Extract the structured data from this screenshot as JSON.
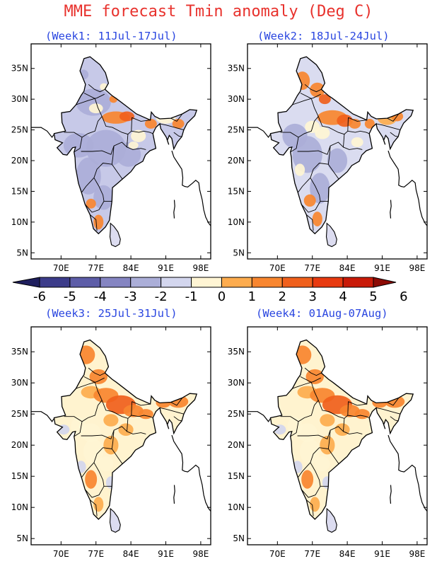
{
  "title": "MME forecast Tmin anomaly (Deg C)",
  "panels": [
    {
      "label": "(Week1: 11Jul-17Jul)",
      "tone": "cool"
    },
    {
      "label": "(Week2: 18Jul-24Jul)",
      "tone": "mixed"
    },
    {
      "label": "(Week3: 25Jul-31Jul)",
      "tone": "warm"
    },
    {
      "label": "(Week4: 01Aug-07Aug)",
      "tone": "warm"
    }
  ],
  "axes": {
    "lat_labels": [
      "35N",
      "30N",
      "25N",
      "20N",
      "15N",
      "10N",
      "5N"
    ],
    "lon_labels": [
      "70E",
      "77E",
      "84E",
      "91E",
      "98E"
    ]
  },
  "colorbar": {
    "labels": [
      "-6",
      "-5",
      "-4",
      "-3",
      "-2",
      "-1",
      "0",
      "1",
      "2",
      "3",
      "4",
      "5",
      "6"
    ],
    "colors": [
      "#1f1f5e",
      "#3c3c8a",
      "#5d5da8",
      "#8585c2",
      "#abaed8",
      "#d3d6ee",
      "#fff5d4",
      "#fdac4e",
      "#f8862f",
      "#f0601c",
      "#e83a10",
      "#c91a08",
      "#8c0a04"
    ]
  },
  "colors": {
    "title": "#e8322d",
    "panel_title": "#2a46e0"
  }
}
